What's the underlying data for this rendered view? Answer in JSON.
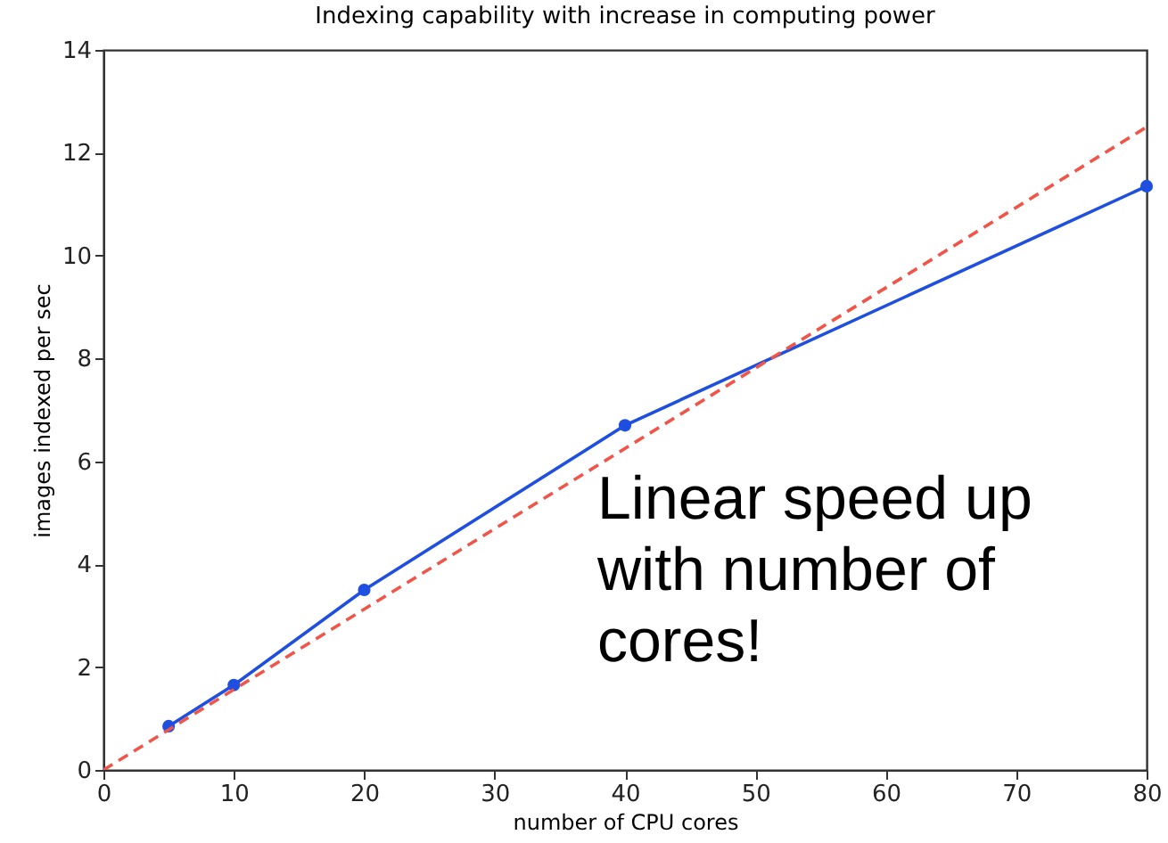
{
  "chart_data": {
    "type": "line",
    "title": "Indexing capability with increase in computing power",
    "xlabel": "number of CPU cores",
    "ylabel": "images indexed per sec",
    "series": [
      {
        "color": "#1f4fe0",
        "x": [
          5,
          10,
          20,
          40,
          80
        ],
        "values": [
          0.85,
          1.65,
          3.5,
          6.7,
          11.35
        ],
        "marker": "circle",
        "line_style": "solid"
      },
      {
        "color": "#f0554a",
        "x": [
          0,
          80
        ],
        "values": [
          0,
          12.5
        ],
        "marker": "none",
        "line_style": "dashed"
      }
    ],
    "xlim": [
      0,
      80
    ],
    "ylim": [
      0,
      14
    ],
    "xticks": [
      0,
      10,
      20,
      30,
      40,
      50,
      60,
      70,
      80
    ],
    "yticks": [
      0,
      2,
      4,
      6,
      8,
      10,
      12,
      14
    ],
    "grid": false,
    "annotations": [
      "Linear speed up\nwith number of\ncores!"
    ]
  }
}
